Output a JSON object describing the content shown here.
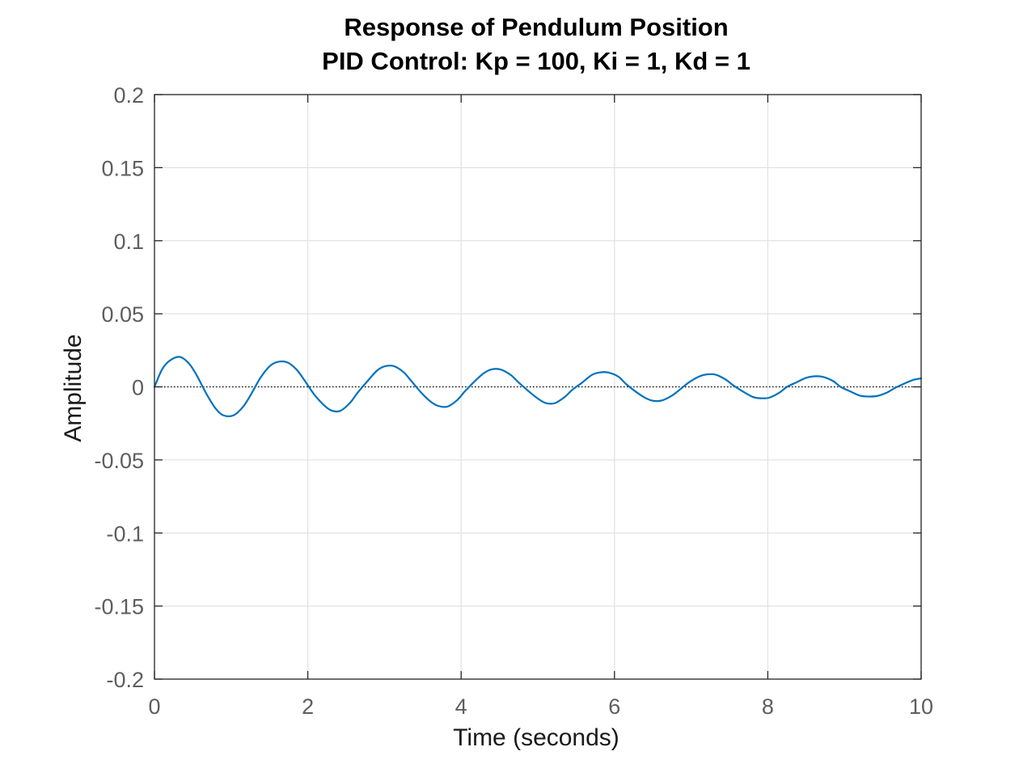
{
  "chart_data": {
    "type": "line",
    "title": "Response of Pendulum Position",
    "subtitle": "PID Control: Kp = 100, Ki = 1, Kd = 1",
    "xlabel": "Time (seconds)",
    "ylabel": "Amplitude",
    "xlim": [
      0,
      10
    ],
    "ylim": [
      -0.2,
      0.2
    ],
    "x_ticks": [
      "0",
      "2",
      "4",
      "6",
      "8",
      "10"
    ],
    "x_tick_values": [
      0,
      2,
      4,
      6,
      8,
      10
    ],
    "y_ticks": [
      "0.2",
      "0.15",
      "0.1",
      "0.05",
      "0",
      "-0.05",
      "-0.1",
      "-0.15",
      "-0.2"
    ],
    "y_tick_values": [
      0.2,
      0.15,
      0.1,
      0.05,
      0,
      -0.05,
      -0.1,
      -0.15,
      -0.2
    ],
    "grid": true,
    "reference_line": {
      "y": 0,
      "style": "dotted"
    },
    "series": [
      {
        "color": "#0072bd",
        "x": [
          0,
          0.1,
          0.2,
          0.33,
          0.45,
          0.55,
          0.68,
          0.8,
          0.9,
          1.03,
          1.15,
          1.25,
          1.38,
          1.5,
          1.6,
          1.73,
          1.85,
          1.95,
          2.08,
          2.2,
          2.3,
          2.42,
          2.55,
          2.65,
          2.78,
          2.9,
          3.0,
          3.12,
          3.25,
          3.35,
          3.48,
          3.6,
          3.7,
          3.82,
          3.95,
          4.05,
          4.18,
          4.3,
          4.4,
          4.52,
          4.65,
          4.75,
          4.88,
          5.0,
          5.1,
          5.22,
          5.35,
          5.45,
          5.58,
          5.7,
          5.8,
          5.92,
          6.05,
          6.15,
          6.27,
          6.4,
          6.5,
          6.62,
          6.75,
          6.85,
          6.97,
          7.1,
          7.2,
          7.32,
          7.45,
          7.55,
          7.67,
          7.8,
          7.9,
          8.02,
          8.15,
          8.25,
          8.37,
          8.5,
          8.6,
          8.72,
          8.85,
          8.95,
          9.07,
          9.2,
          9.3,
          9.42,
          9.55,
          9.65,
          9.77,
          9.9,
          10.0
        ],
        "y": [
          0,
          0.012,
          0.018,
          0.0205,
          0.016,
          0.008,
          -0.005,
          -0.015,
          -0.0195,
          -0.0195,
          -0.014,
          -0.006,
          0.006,
          0.014,
          0.017,
          0.0168,
          0.012,
          0.005,
          -0.005,
          -0.012,
          -0.016,
          -0.0165,
          -0.011,
          -0.004,
          0.004,
          0.011,
          0.014,
          0.0142,
          0.01,
          0.004,
          -0.004,
          -0.01,
          -0.013,
          -0.0135,
          -0.009,
          -0.003,
          0.004,
          0.0095,
          0.012,
          0.0118,
          0.008,
          0.003,
          -0.003,
          -0.008,
          -0.011,
          -0.0112,
          -0.007,
          -0.002,
          0.003,
          0.008,
          0.0098,
          0.0098,
          0.007,
          0.002,
          -0.003,
          -0.0075,
          -0.0095,
          -0.0093,
          -0.006,
          -0.002,
          0.003,
          0.007,
          0.0085,
          0.0083,
          0.005,
          0.001,
          -0.003,
          -0.0068,
          -0.0078,
          -0.0074,
          -0.004,
          0.0,
          0.003,
          0.0062,
          0.0072,
          0.0068,
          0.004,
          0.0,
          -0.003,
          -0.006,
          -0.0066,
          -0.0063,
          -0.004,
          -0.001,
          0.002,
          0.0048,
          0.0058
        ]
      }
    ]
  }
}
